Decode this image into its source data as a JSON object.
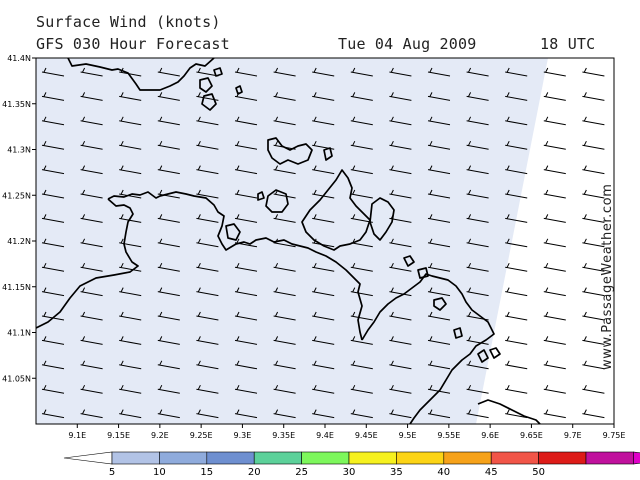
{
  "header": {
    "title": "Surface Wind (knots)",
    "model": "GFS 030 Hour Forecast",
    "date": "Tue 04 Aug 2009",
    "time": "18 UTC"
  },
  "credit": "www.PassageWeather.com",
  "map": {
    "lat_labels": [
      "41.4N",
      "41.35N",
      "41.3N",
      "41.25N",
      "41.2N",
      "41.15N",
      "41.1N",
      "41.05N"
    ],
    "lon_labels": [
      "9.1E",
      "9.15E",
      "9.2E",
      "9.25E",
      "9.3E",
      "9.35E",
      "9.4E",
      "9.45E",
      "9.5E",
      "9.55E",
      "9.6E",
      "9.65E",
      "9.7E",
      "9.75E"
    ],
    "lat_range": [
      41.0,
      41.4
    ],
    "lon_range": [
      9.05,
      9.75
    ],
    "wind_speed_knots": 5,
    "wind_direction": "westerly",
    "shading_color": "#e4eaf6",
    "coast_color": "#000000"
  },
  "legend": {
    "labels": [
      "5",
      "10",
      "15",
      "20",
      "25",
      "30",
      "35",
      "40",
      "45",
      "50"
    ],
    "colors": [
      "#ffffff",
      "#b2c3e6",
      "#8fabdc",
      "#6e8fd0",
      "#5cd19a",
      "#7df75c",
      "#f6f11f",
      "#fcd416",
      "#f6a21a",
      "#f15548",
      "#dd1b18",
      "#c0119d",
      "#e000c9"
    ]
  }
}
